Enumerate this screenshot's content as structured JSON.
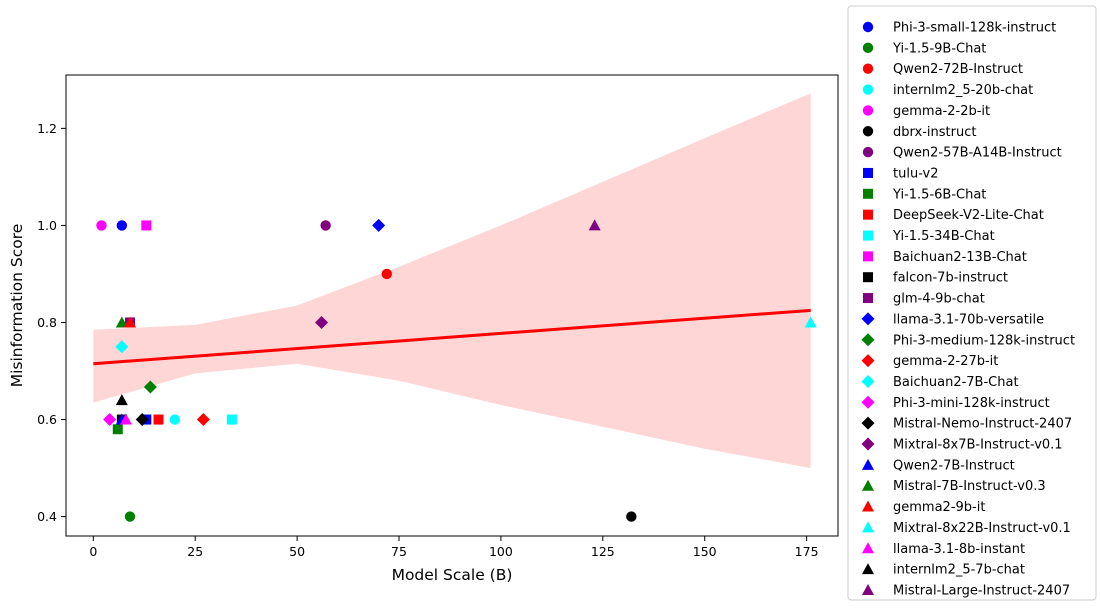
{
  "chart_data": {
    "type": "scatter",
    "title": "",
    "xlabel": "Model Scale (B)",
    "ylabel": "Misinformation Score",
    "xlim": [
      -6.7,
      182.7
    ],
    "ylim": [
      0.36,
      1.31
    ],
    "xticks": [
      0,
      25,
      50,
      75,
      100,
      125,
      150,
      175
    ],
    "yticks": [
      0.4,
      0.6,
      0.8,
      1.0,
      1.2
    ],
    "grid": false,
    "legend_position": "outside-right",
    "series": [
      {
        "name": "Phi-3-small-128k-instruct",
        "marker": "circle",
        "color": "#0000ff",
        "x": 7,
        "y": 1.0
      },
      {
        "name": "Yi-1.5-9B-Chat",
        "marker": "circle",
        "color": "#008000",
        "x": 9,
        "y": 0.4
      },
      {
        "name": "Qwen2-72B-Instruct",
        "marker": "circle",
        "color": "#ff0000",
        "x": 72,
        "y": 0.9
      },
      {
        "name": "internlm2_5-20b-chat",
        "marker": "circle",
        "color": "#00ffff",
        "x": 20,
        "y": 0.6
      },
      {
        "name": "gemma-2-2b-it",
        "marker": "circle",
        "color": "#ff00ff",
        "x": 2,
        "y": 1.0
      },
      {
        "name": "dbrx-instruct",
        "marker": "circle",
        "color": "#000000",
        "x": 132,
        "y": 0.4
      },
      {
        "name": "Qwen2-57B-A14B-Instruct",
        "marker": "circle",
        "color": "#800080",
        "x": 57,
        "y": 1.0
      },
      {
        "name": "tulu-v2",
        "marker": "square",
        "color": "#0000ff",
        "x": 13,
        "y": 0.6
      },
      {
        "name": "Yi-1.5-6B-Chat",
        "marker": "square",
        "color": "#008000",
        "x": 6,
        "y": 0.58
      },
      {
        "name": "DeepSeek-V2-Lite-Chat",
        "marker": "square",
        "color": "#ff0000",
        "x": 16,
        "y": 0.6
      },
      {
        "name": "Yi-1.5-34B-Chat",
        "marker": "square",
        "color": "#00ffff",
        "x": 34,
        "y": 0.6
      },
      {
        "name": "Baichuan2-13B-Chat",
        "marker": "square",
        "color": "#ff00ff",
        "x": 13,
        "y": 1.0
      },
      {
        "name": "falcon-7b-instruct",
        "marker": "square",
        "color": "#000000",
        "x": 7,
        "y": 0.6
      },
      {
        "name": "glm-4-9b-chat",
        "marker": "square",
        "color": "#800080",
        "x": 9,
        "y": 0.8
      },
      {
        "name": "llama-3.1-70b-versatile",
        "marker": "diamond",
        "color": "#0000ff",
        "x": 70,
        "y": 1.0
      },
      {
        "name": "Phi-3-medium-128k-instruct",
        "marker": "diamond",
        "color": "#008000",
        "x": 14,
        "y": 0.667
      },
      {
        "name": "gemma-2-27b-it",
        "marker": "diamond",
        "color": "#ff0000",
        "x": 27,
        "y": 0.6
      },
      {
        "name": "Baichuan2-7B-Chat",
        "marker": "diamond",
        "color": "#00ffff",
        "x": 7,
        "y": 0.75
      },
      {
        "name": "Phi-3-mini-128k-instruct",
        "marker": "diamond",
        "color": "#ff00ff",
        "x": 4,
        "y": 0.6
      },
      {
        "name": "Mistral-Nemo-Instruct-2407",
        "marker": "diamond",
        "color": "#000000",
        "x": 12,
        "y": 0.6
      },
      {
        "name": "Mixtral-8x7B-Instruct-v0.1",
        "marker": "diamond",
        "color": "#800080",
        "x": 56,
        "y": 0.8
      },
      {
        "name": "Qwen2-7B-Instruct",
        "marker": "triangle",
        "color": "#0000ff",
        "x": 7,
        "y": 0.6
      },
      {
        "name": "Mistral-7B-Instruct-v0.3",
        "marker": "triangle",
        "color": "#008000",
        "x": 7,
        "y": 0.8
      },
      {
        "name": "gemma2-9b-it",
        "marker": "triangle",
        "color": "#ff0000",
        "x": 9,
        "y": 0.8
      },
      {
        "name": "Mixtral-8x22B-Instruct-v0.1",
        "marker": "triangle",
        "color": "#00ffff",
        "x": 176,
        "y": 0.8
      },
      {
        "name": "llama-3.1-8b-instant",
        "marker": "triangle",
        "color": "#ff00ff",
        "x": 8,
        "y": 0.6
      },
      {
        "name": "internlm2_5-7b-chat",
        "marker": "triangle",
        "color": "#000000",
        "x": 7,
        "y": 0.64
      },
      {
        "name": "Mistral-Large-Instruct-2407",
        "marker": "triangle",
        "color": "#800080",
        "x": 123,
        "y": 1.0
      }
    ],
    "regression": {
      "color": "#ff0000",
      "band_color": "#ffd6d6",
      "line": [
        [
          0,
          0.715
        ],
        [
          176,
          0.825
        ]
      ],
      "ci_upper": [
        [
          0,
          0.785
        ],
        [
          25,
          0.795
        ],
        [
          50,
          0.835
        ],
        [
          75,
          0.915
        ],
        [
          100,
          1.0
        ],
        [
          125,
          1.09
        ],
        [
          150,
          1.18
        ],
        [
          176,
          1.272
        ]
      ],
      "ci_lower": [
        [
          0,
          0.635
        ],
        [
          25,
          0.695
        ],
        [
          50,
          0.715
        ],
        [
          75,
          0.68
        ],
        [
          100,
          0.63
        ],
        [
          125,
          0.585
        ],
        [
          150,
          0.54
        ],
        [
          176,
          0.5
        ]
      ]
    }
  }
}
